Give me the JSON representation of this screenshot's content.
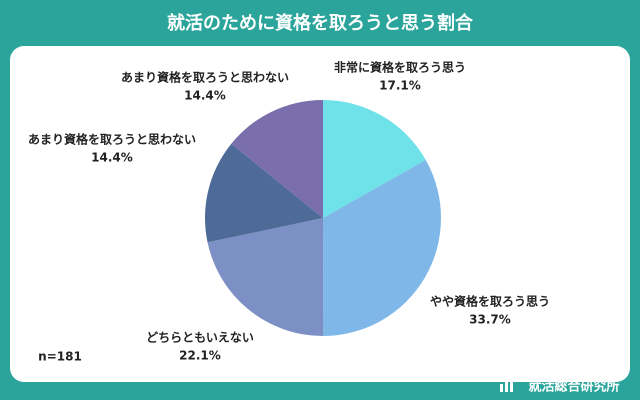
{
  "chart_data": {
    "type": "pie",
    "title": "就活のために資格を取ろうと思う割合",
    "categories": [
      "非常に資格を取ろう思う",
      "やや資格を取ろう思う",
      "どちらともいえない",
      "あまり資格を取ろうと思わない",
      "あまり資格を取ろうと思わない"
    ],
    "values": [
      17.1,
      33.7,
      22.1,
      14.4,
      14.4
    ],
    "value_labels": [
      "17.1%",
      "33.7%",
      "22.1%",
      "14.4%",
      "14.4%"
    ],
    "colors": [
      "#6ee2e8",
      "#7fb8e8",
      "#7c90c6",
      "#4e6b98",
      "#7b6eac"
    ],
    "note": "n=181",
    "source": "就活総合研究所"
  }
}
